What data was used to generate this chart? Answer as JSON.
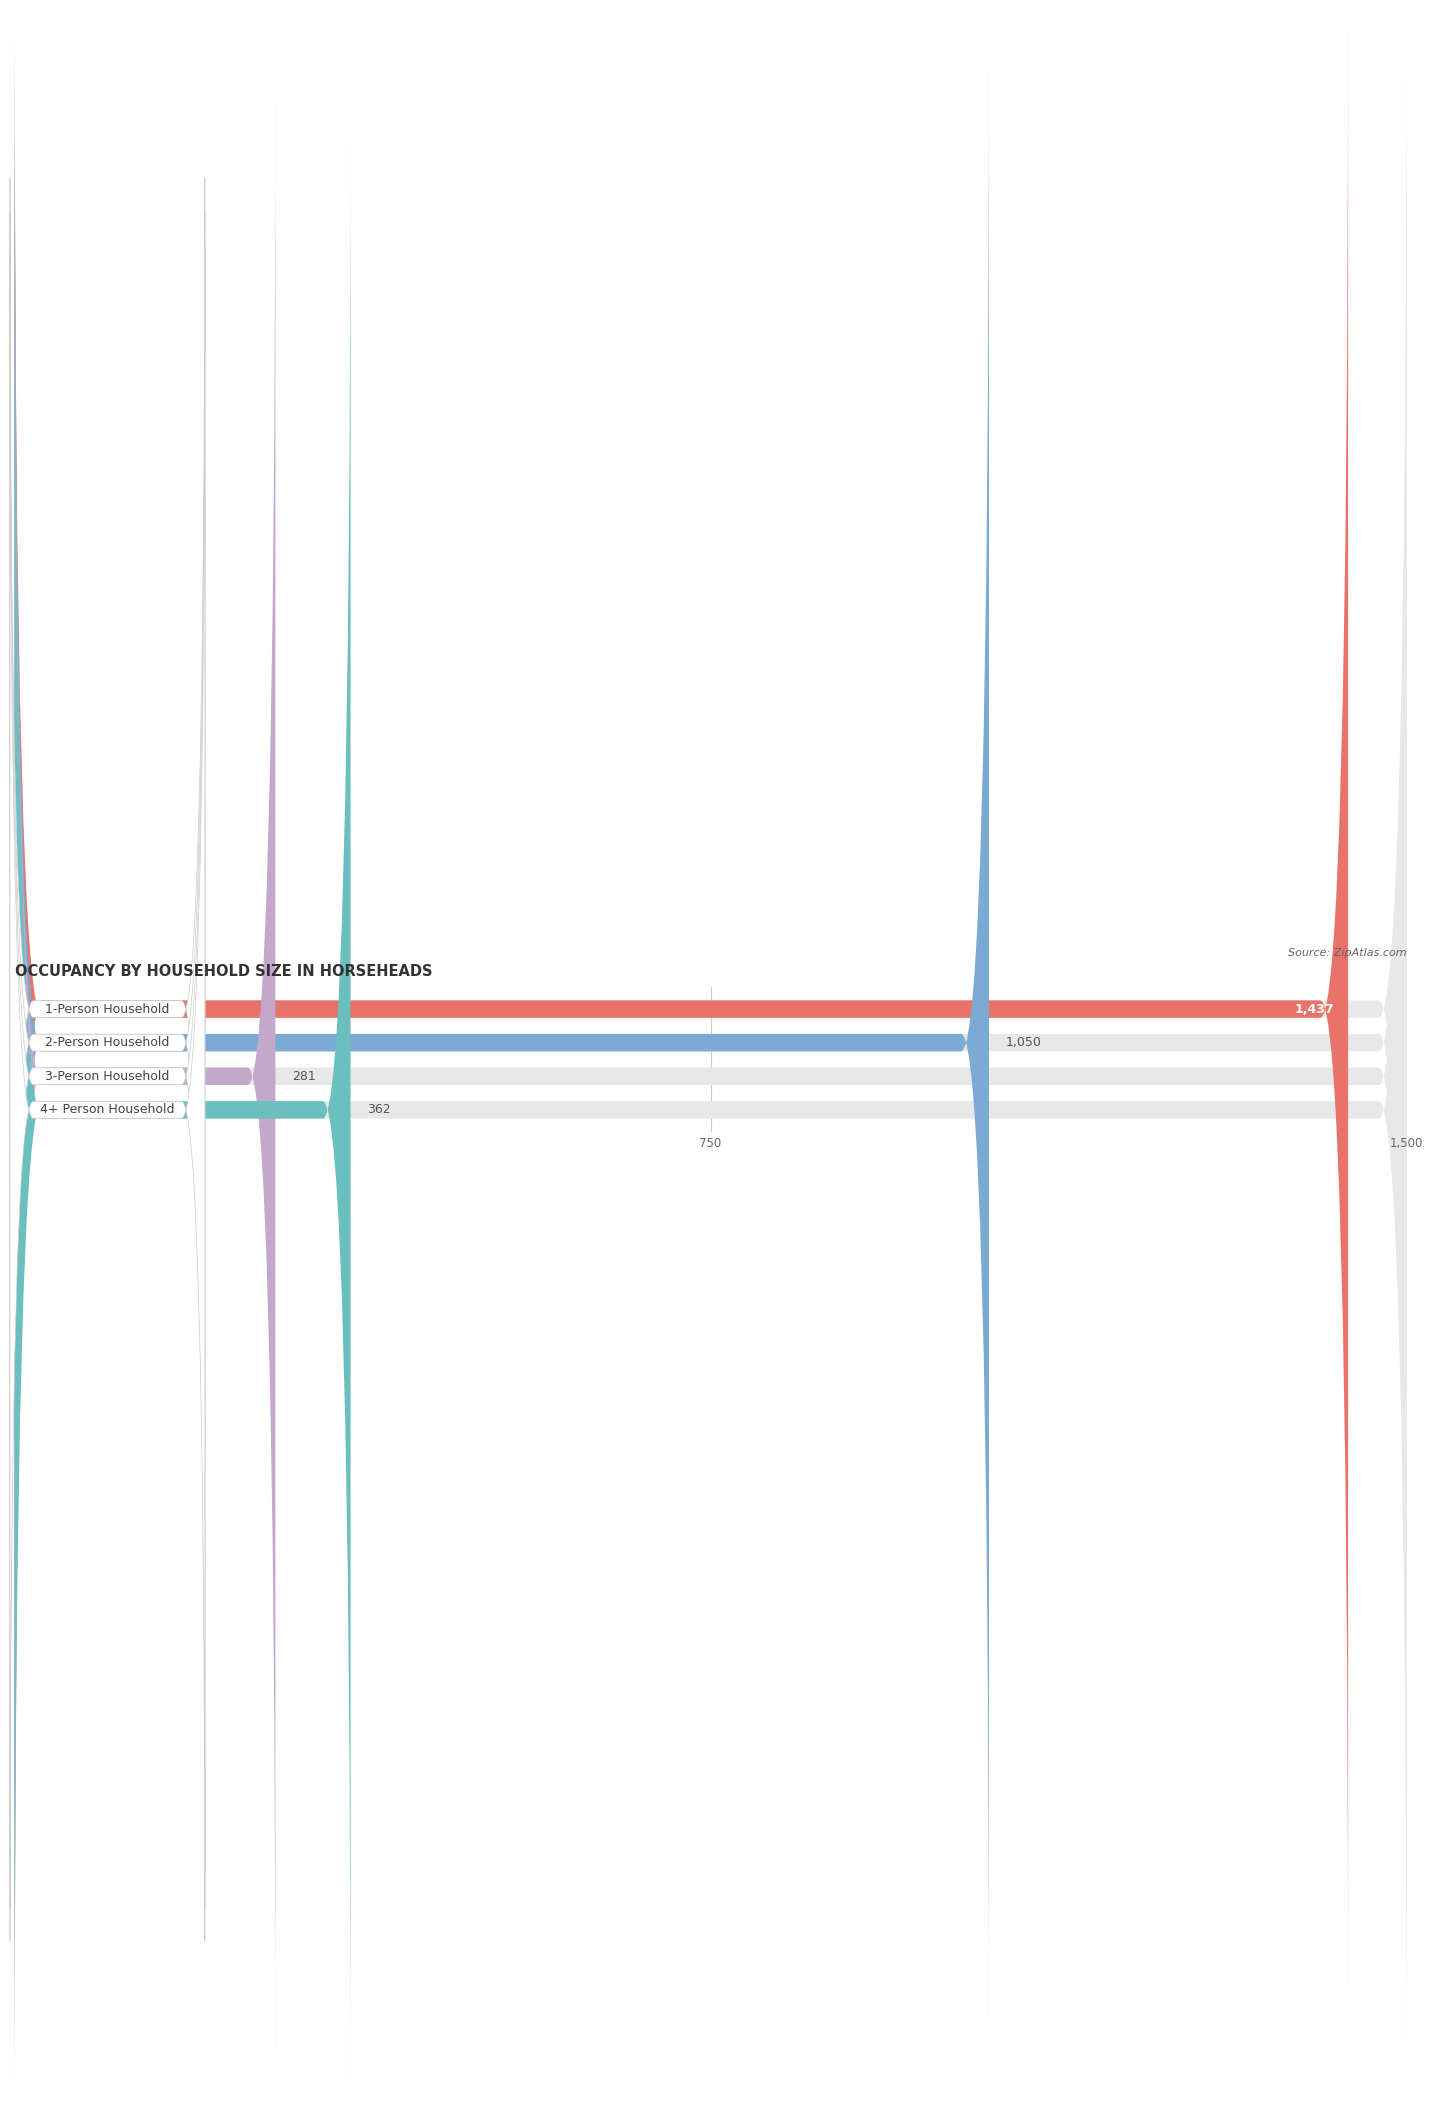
{
  "title": "OCCUPANCY BY HOUSEHOLD SIZE IN HORSEHEADS",
  "source": "Source: ZipAtlas.com",
  "categories": [
    "1-Person Household",
    "2-Person Household",
    "3-Person Household",
    "4+ Person Household"
  ],
  "values": [
    1437,
    1050,
    281,
    362
  ],
  "bar_colors": [
    "#E8736A",
    "#7BAAD4",
    "#C4A8CC",
    "#6BBFBF"
  ],
  "xlim": [
    0,
    1500
  ],
  "xticks": [
    0,
    750,
    1500
  ],
  "background_color": "#ffffff",
  "bar_background_color": "#e8e8e8",
  "title_fontsize": 10.5,
  "source_fontsize": 8,
  "label_fontsize": 9,
  "value_fontsize": 9,
  "bar_height": 0.52,
  "bar_gap": 1.0
}
